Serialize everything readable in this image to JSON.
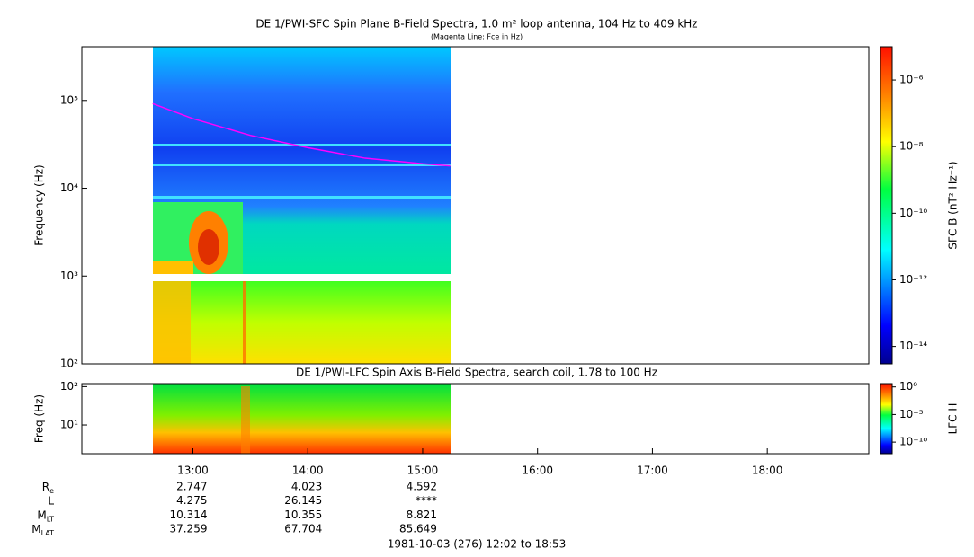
{
  "chart_data": [
    {
      "type": "spectrogram",
      "title": "DE 1/PWI-SFC  Spin Plane B-Field Spectra, 1.0 m² loop antenna, 104 Hz to 409 kHz",
      "subtitle": "(Magenta Line: Fce in Hz)",
      "ylabel": "Frequency (Hz)",
      "log_y": true,
      "ylim": [
        100,
        409000
      ],
      "yticks": [
        {
          "value": 100,
          "label": "10²"
        },
        {
          "value": 1000,
          "label": "10³"
        },
        {
          "value": 10000,
          "label": "10⁴"
        },
        {
          "value": 100000,
          "label": "10⁵"
        }
      ],
      "xlim": [
        12.0333,
        18.8833
      ],
      "series": [
        {
          "color": "#ff00ff",
          "x": [
            12.65,
            13.0,
            13.5,
            14.0,
            14.5,
            15.0,
            15.24
          ],
          "values": [
            92000,
            62000,
            40000,
            29000,
            22000,
            19000,
            18000
          ]
        }
      ],
      "colorbar": {
        "label": "SFC B (nT² Hz⁻¹)",
        "lim": [
          3e-15,
          1e-05
        ],
        "ticks": [
          {
            "value": 1e-06,
            "label": "10⁻⁶"
          },
          {
            "value": 1e-08,
            "label": "10⁻⁸"
          },
          {
            "value": 1e-10,
            "label": "10⁻¹⁰"
          },
          {
            "value": 1e-12,
            "label": "10⁻¹²"
          },
          {
            "value": 1e-14,
            "label": "10⁻¹⁴"
          }
        ]
      }
    },
    {
      "type": "spectrogram",
      "title": "DE 1/PWI-LFC  Spin Axis B-Field Spectra, search coil, 1.78 to 100 Hz",
      "ylabel": "Freq (Hz)",
      "log_y": true,
      "ylim": [
        1.78,
        120
      ],
      "yticks": [
        {
          "value": 10,
          "label": "10¹"
        },
        {
          "value": 100,
          "label": "10²"
        }
      ],
      "xlim": [
        12.0333,
        18.8833
      ],
      "xticks": [
        {
          "value": 13,
          "label": "13:00"
        },
        {
          "value": 14,
          "label": "14:00"
        },
        {
          "value": 15,
          "label": "15:00"
        },
        {
          "value": 16,
          "label": "16:00"
        },
        {
          "value": 17,
          "label": "17:00"
        },
        {
          "value": 18,
          "label": "18:00"
        }
      ],
      "colorbar": {
        "label": "LFC H",
        "lim": [
          8e-13,
          4
        ],
        "ticks": [
          {
            "value": 1,
            "label": "10⁰"
          },
          {
            "value": 1e-05,
            "label": "10⁻⁵"
          },
          {
            "value": 1e-10,
            "label": "10⁻¹⁰"
          }
        ]
      }
    }
  ],
  "ephemeris": {
    "rows": [
      {
        "label": "R",
        "sub": "e",
        "values": [
          2.747,
          4.023,
          4.592
        ]
      },
      {
        "label": "L",
        "values": [
          4.275,
          26.145,
          "****"
        ]
      },
      {
        "label": "M",
        "sub": "LT",
        "values": [
          10.314,
          10.355,
          8.821
        ]
      },
      {
        "label": "M",
        "sub": "LAT",
        "values": [
          37.259,
          67.704,
          85.649
        ]
      }
    ],
    "caption": "1981-10-03 (276) 12:02 to 18:53"
  }
}
